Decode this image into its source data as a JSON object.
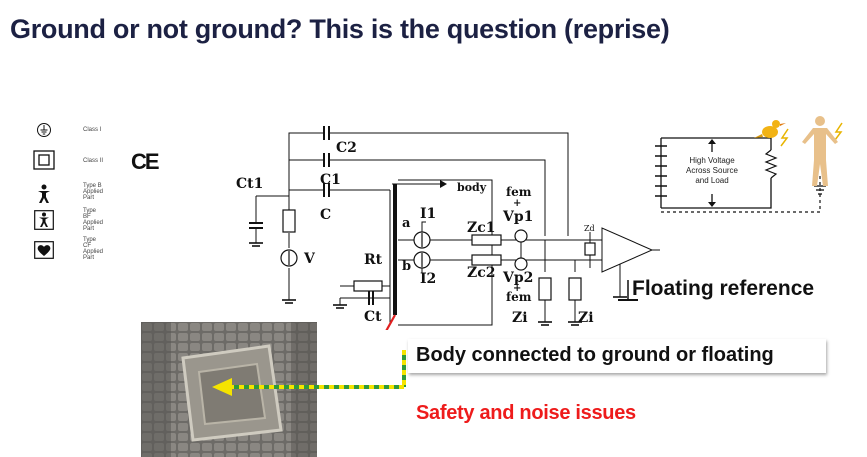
{
  "title": "Ground or not ground? This is the question (reprise)",
  "symbols": {
    "class1": "Class I",
    "class2": "Class II",
    "ce": "CE",
    "typeB": "Type B\nApplied\nPart",
    "typeBF": "Type\nBF\nApplied\nPart",
    "typeCF": "Type\nCF\nApplied\nPart"
  },
  "circuit": {
    "C2": "C2",
    "C1": "C1",
    "C": "C",
    "Ct1": "Ct1",
    "V": "V",
    "body": "body",
    "a": "a",
    "b": "b",
    "I1": "I1",
    "I2": "I2",
    "Zc1": "Zc1",
    "Zc2": "Zc2",
    "fem1": "fem",
    "plus1": "+",
    "Vp1": "Vp1",
    "Vp2": "Vp2",
    "plus2": "+",
    "fem2": "fem",
    "Zi1": "Zi",
    "Zi2": "Zi",
    "Rt": "Rt",
    "Ct": "Ct",
    "Zd": "Zd"
  },
  "inset": {
    "text": "High Voltage\nAcross Source\nand Load"
  },
  "labels": {
    "floating": "Floating reference",
    "body_conn": "Body connected to ground or floating",
    "safety": "Safety and noise issues"
  },
  "colors": {
    "title": "#1c2143",
    "accent_red": "#ee1b1b",
    "arrow_yellow": "#f5e400",
    "arrow_green": "#2e9a3a"
  }
}
